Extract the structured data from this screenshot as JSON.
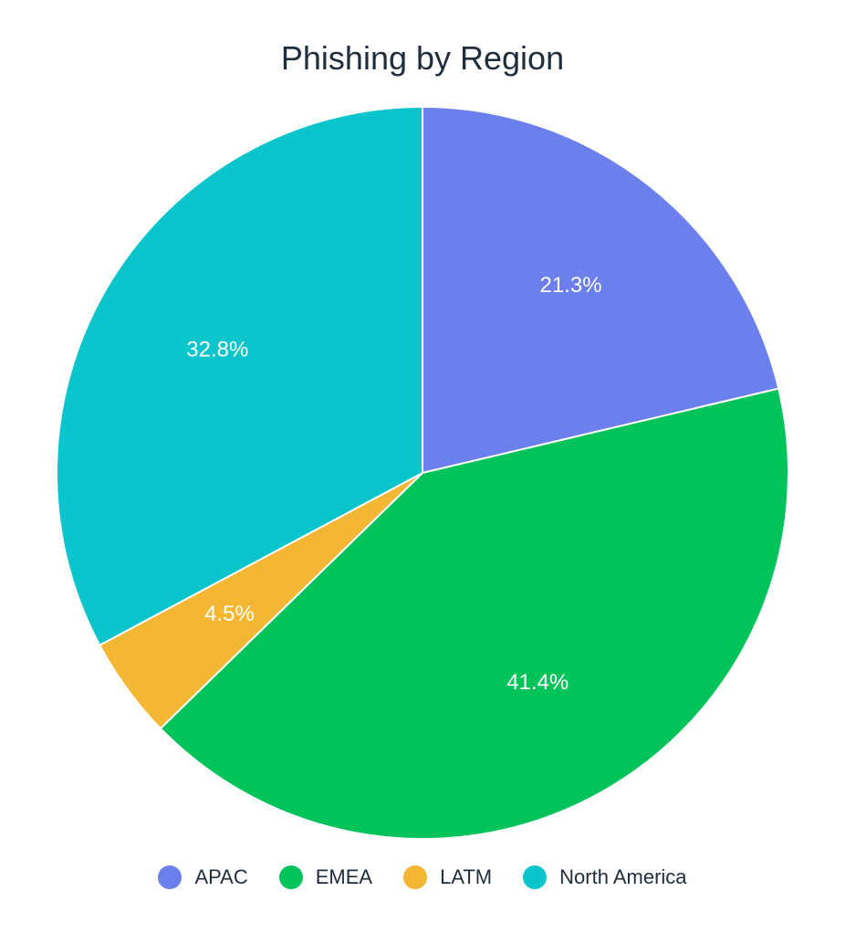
{
  "chart_data": {
    "type": "pie",
    "title": "Phishing by Region",
    "categories": [
      "APAC",
      "EMEA",
      "LATM",
      "North America"
    ],
    "values": [
      21.3,
      41.4,
      4.5,
      32.8
    ],
    "labels": [
      "21.3%",
      "41.4%",
      "4.5%",
      "32.8%"
    ],
    "colors": [
      "#6b7fed",
      "#00c35a",
      "#f4b733",
      "#0bc5cc"
    ],
    "legend_position": "bottom",
    "start_angle": "12 o'clock",
    "direction": "clockwise"
  }
}
